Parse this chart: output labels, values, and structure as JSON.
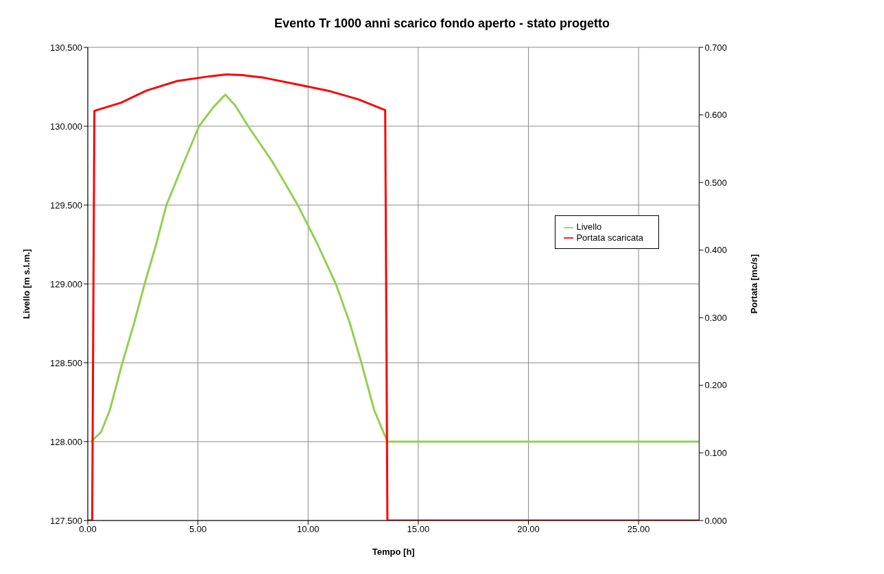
{
  "chart_data": {
    "type": "line",
    "title": "Evento Tr 1000 anni scarico fondo aperto - stato progetto",
    "xlabel": "Tempo [h]",
    "ylabel": "Livello [m s.l.m.]",
    "y2label": "Portata [mc/s]",
    "xlim": [
      0,
      27.75
    ],
    "xticks": [
      {
        "value": 0,
        "label": "0.00"
      },
      {
        "value": 5,
        "label": "5.00"
      },
      {
        "value": 10,
        "label": "10.00"
      },
      {
        "value": 15,
        "label": "15.00"
      },
      {
        "value": 20,
        "label": "20.00"
      },
      {
        "value": 25,
        "label": "25.00"
      }
    ],
    "ylim": [
      127.5,
      130.5
    ],
    "yticks": [
      {
        "value": 127.5,
        "label": "127.500"
      },
      {
        "value": 128,
        "label": "128.000"
      },
      {
        "value": 128.5,
        "label": "128.500"
      },
      {
        "value": 129,
        "label": "129.000"
      },
      {
        "value": 129.5,
        "label": "129.500"
      },
      {
        "value": 130,
        "label": "130.000"
      },
      {
        "value": 130.5,
        "label": "130.500"
      }
    ],
    "y2lim": [
      0,
      0.7
    ],
    "y2ticks": [
      {
        "value": 0,
        "label": "0.000"
      },
      {
        "value": 0.1,
        "label": "0.100"
      },
      {
        "value": 0.2,
        "label": "0.200"
      },
      {
        "value": 0.3,
        "label": "0.300"
      },
      {
        "value": 0.4,
        "label": "0.400"
      },
      {
        "value": 0.5,
        "label": "0.500"
      },
      {
        "value": 0.6,
        "label": "0.600"
      },
      {
        "value": 0.7,
        "label": "0.700"
      }
    ],
    "grid": true,
    "legend": "right",
    "marker": "none",
    "line_style": "solid",
    "series": [
      {
        "name": "Livello",
        "color": "#92d050",
        "x": [
          0.15,
          0.6,
          1.0,
          1.57,
          2.1,
          2.58,
          3.1,
          3.57,
          4.3,
          5.05,
          5.7,
          6.24,
          6.7,
          7.28,
          8.4,
          9.53,
          10.4,
          11.26,
          11.9,
          12.42,
          13.0,
          13.6,
          20,
          27.75
        ],
        "values": [
          128.0,
          128.06,
          128.2,
          128.5,
          128.75,
          129.0,
          129.25,
          129.5,
          129.75,
          130.0,
          130.12,
          130.2,
          130.13,
          130.0,
          129.77,
          129.5,
          129.26,
          129.0,
          128.75,
          128.5,
          128.2,
          128.0,
          128.0,
          128.0
        ]
      },
      {
        "name": "Portata scaricata",
        "color": "#ff0000",
        "axis": "y2",
        "x": [
          0,
          0.2,
          0.3,
          1.5,
          2.66,
          4.04,
          5.5,
          6.3,
          7.0,
          8.0,
          9.53,
          11.0,
          12.28,
          13.5,
          13.6,
          20,
          27.75
        ],
        "values": [
          0,
          0,
          0.606,
          0.618,
          0.636,
          0.65,
          0.657,
          0.66,
          0.659,
          0.655,
          0.645,
          0.635,
          0.623,
          0.607,
          0,
          0,
          0
        ]
      }
    ]
  }
}
